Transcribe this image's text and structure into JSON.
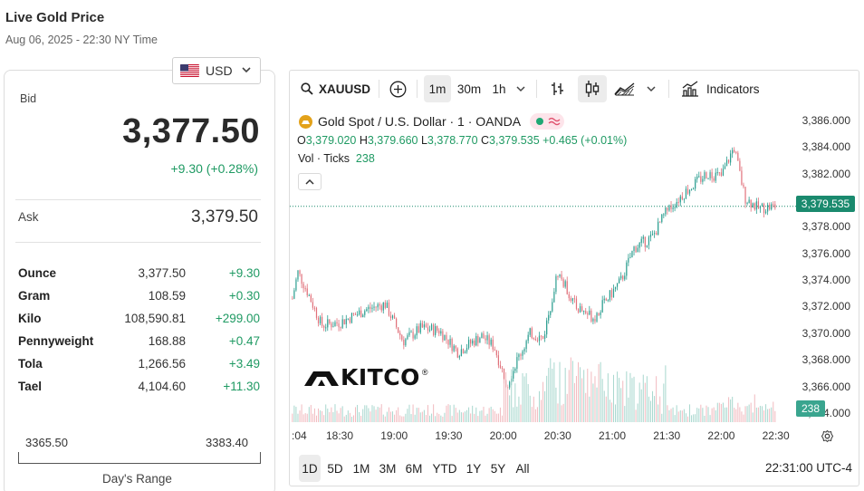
{
  "page": {
    "title": "Live Gold Price",
    "datetime": "Aug 06, 2025 - 22:30 NY Time"
  },
  "currency": {
    "selected": "USD",
    "icon": "flag-usa-icon"
  },
  "quote": {
    "bid_label": "Bid",
    "bid": "3,377.50",
    "change": "+9.30 (+0.28%)",
    "ask_label": "Ask",
    "ask": "3,379.50"
  },
  "units": [
    {
      "name": "Ounce",
      "value": "3,377.50",
      "change": "+9.30"
    },
    {
      "name": "Gram",
      "value": "108.59",
      "change": "+0.30"
    },
    {
      "name": "Kilo",
      "value": "108,590.81",
      "change": "+299.00"
    },
    {
      "name": "Pennyweight",
      "value": "168.88",
      "change": "+0.47"
    },
    {
      "name": "Tola",
      "value": "1,266.56",
      "change": "+3.49"
    },
    {
      "name": "Tael",
      "value": "4,104.60",
      "change": "+11.30"
    }
  ],
  "day_range": {
    "low": "3365.50",
    "high": "3383.40",
    "label": "Day's Range"
  },
  "chart_toolbar": {
    "symbol": "XAUUSD",
    "intervals": [
      "1m",
      "30m",
      "1h"
    ],
    "active_interval": "1m",
    "indicators_label": "Indicators"
  },
  "chart_legend": {
    "title": "Gold Spot / U.S. Dollar · 1 · OANDA",
    "o_label": "O",
    "o": "3,379.020",
    "h_label": "H",
    "h": "3,379.660",
    "l_label": "L",
    "l": "3,378.770",
    "c_label": "C",
    "c": "3,379.535",
    "change": "+0.465 (+0.01%)",
    "vol_label": "Vol · Ticks",
    "vol": "238"
  },
  "last_price_tag": "3,379.535",
  "volume_tag": "238",
  "logo_text": "KITCO",
  "logo_reg": "®",
  "range_buttons": [
    "1D",
    "5D",
    "1M",
    "3M",
    "6M",
    "YTD",
    "1Y",
    "5Y",
    "All"
  ],
  "active_range": "1D",
  "clock": "22:31:00 UTC-4",
  "colors": {
    "up": "#1f9a63",
    "candle_up": "#2a9d8f",
    "candle_down": "#e0707a",
    "tag": "#1a8a6e"
  },
  "chart_data": {
    "type": "candlestick",
    "y_ticks": [
      "3,386.000",
      "3,384.000",
      "3,382.000",
      "3,380.000",
      "3,378.000",
      "3,376.000",
      "3,374.000",
      "3,372.000",
      "3,370.000",
      "3,368.000",
      "3,366.000",
      "3,364.000"
    ],
    "ylim": [
      3364,
      3386.6
    ],
    "x_ticks": [
      ":04",
      "18:30",
      "19:00",
      "19:30",
      "20:00",
      "20:30",
      "21:00",
      "21:30",
      "22:00",
      "22:30"
    ],
    "last": 3379.535,
    "price_path": [
      {
        "x": "18:04",
        "y": 3372.6
      },
      {
        "x": "18:07",
        "y": 3374.6
      },
      {
        "x": "18:12",
        "y": 3373.2
      },
      {
        "x": "18:20",
        "y": 3370.6
      },
      {
        "x": "18:30",
        "y": 3370.8
      },
      {
        "x": "18:45",
        "y": 3371.8
      },
      {
        "x": "18:55",
        "y": 3372.2
      },
      {
        "x": "19:05",
        "y": 3369.4
      },
      {
        "x": "19:15",
        "y": 3370.4
      },
      {
        "x": "19:25",
        "y": 3370.2
      },
      {
        "x": "19:35",
        "y": 3368.6
      },
      {
        "x": "19:48",
        "y": 3369.8
      },
      {
        "x": "19:55",
        "y": 3369.0
      },
      {
        "x": "20:02",
        "y": 3366.2
      },
      {
        "x": "20:07",
        "y": 3367.8
      },
      {
        "x": "20:15",
        "y": 3370.0
      },
      {
        "x": "20:22",
        "y": 3369.6
      },
      {
        "x": "20:30",
        "y": 3374.6
      },
      {
        "x": "20:40",
        "y": 3372.0
      },
      {
        "x": "20:50",
        "y": 3371.2
      },
      {
        "x": "21:05",
        "y": 3374.0
      },
      {
        "x": "21:12",
        "y": 3376.4
      },
      {
        "x": "21:22",
        "y": 3377.2
      },
      {
        "x": "21:30",
        "y": 3379.2
      },
      {
        "x": "21:40",
        "y": 3380.6
      },
      {
        "x": "21:52",
        "y": 3382.0
      },
      {
        "x": "22:00",
        "y": 3381.8
      },
      {
        "x": "22:07",
        "y": 3384.0
      },
      {
        "x": "22:13",
        "y": 3380.2
      },
      {
        "x": "22:20",
        "y": 3379.4
      },
      {
        "x": "22:30",
        "y": 3379.535
      }
    ]
  }
}
